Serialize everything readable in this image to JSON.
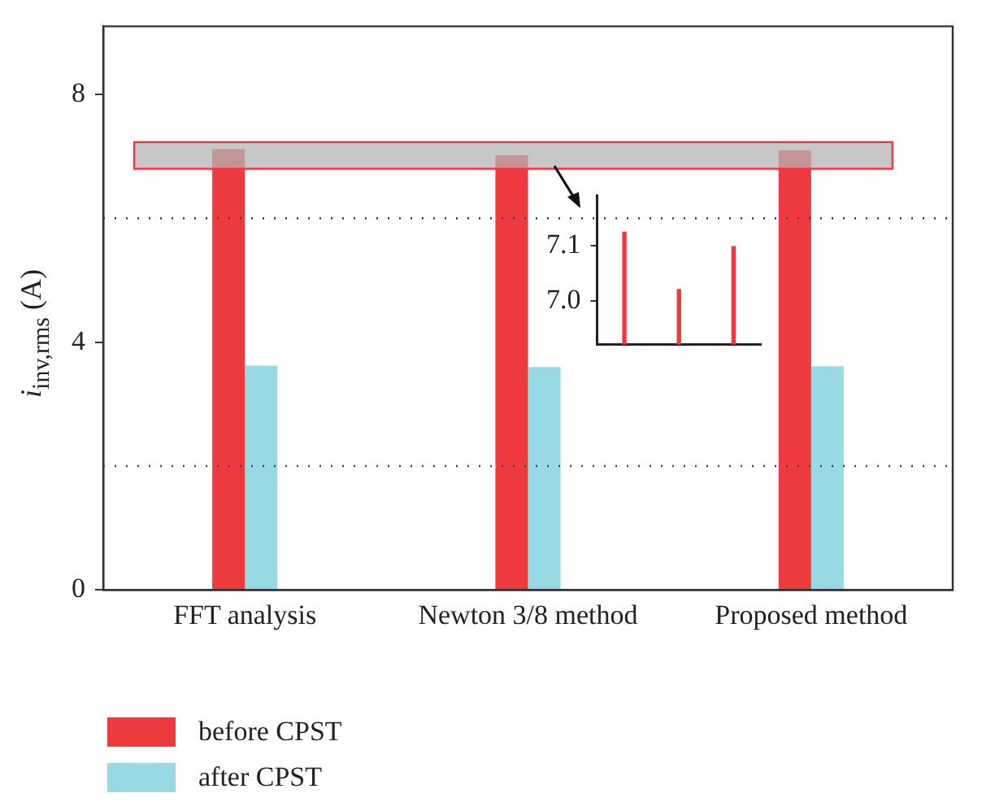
{
  "chart_data": [
    {
      "type": "bar",
      "categories": [
        "FFT analysis",
        "Newton 3/8 method",
        "Proposed method"
      ],
      "ylabel": "i$_{inv,rms}$ (A)",
      "series": [
        {
          "name": "before CPST",
          "color": "#ee3a3f",
          "values": [
            7.12,
            7.02,
            7.1
          ]
        },
        {
          "name": "after CPST",
          "color": "#98d9e4",
          "values": [
            3.62,
            3.6,
            3.61
          ]
        }
      ],
      "ylim": [
        0,
        9.1
      ],
      "yticks": [
        0,
        4,
        8
      ],
      "legend": "bottom left",
      "ref_lines": [
        {
          "axis": "y",
          "value": 2,
          "color": "#444444",
          "line_style": "dotted"
        },
        {
          "axis": "y",
          "value": 6,
          "color": "#444444",
          "line_style": "dotted"
        }
      ],
      "bands": [
        {
          "axis": "y",
          "from": 6.8,
          "to": 7.23,
          "color": "#b4b4b4"
        }
      ]
    },
    {
      "type": "bar",
      "categories": [
        null,
        null,
        null
      ],
      "series": [
        {
          "color": "#ee3a3f",
          "values": [
            7.125,
            7.022,
            7.099
          ]
        }
      ],
      "ylim": [
        6.922,
        7.19
      ],
      "yticks": [
        {
          "value": 7,
          "label": "7.0"
        },
        7.1
      ],
      "tick_labels": "y"
    }
  ]
}
